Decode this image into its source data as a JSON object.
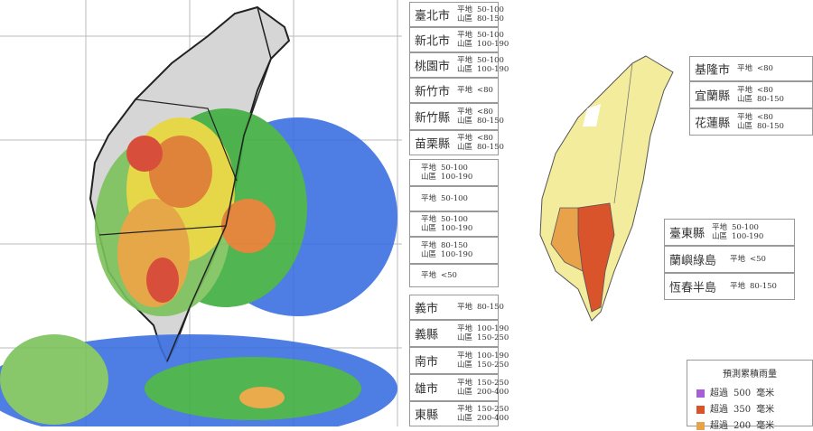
{
  "labels": [
    {
      "name": "臺北市",
      "rows": [
        {
          "zone": "平地",
          "range": "50-100"
        },
        {
          "zone": "山區",
          "range": "80-150"
        }
      ]
    },
    {
      "name": "新北市",
      "rows": [
        {
          "zone": "平地",
          "range": "50-100"
        },
        {
          "zone": "山區",
          "range": "100-190"
        }
      ]
    },
    {
      "name": "桃園市",
      "rows": [
        {
          "zone": "平地",
          "range": "50-100"
        },
        {
          "zone": "山區",
          "range": "100-190"
        }
      ]
    },
    {
      "name": "新竹市",
      "rows": [
        {
          "zone": "平地",
          "range": "<80"
        }
      ]
    },
    {
      "name": "新竹縣",
      "rows": [
        {
          "zone": "平地",
          "range": "<80"
        },
        {
          "zone": "山區",
          "range": "80-150"
        }
      ]
    },
    {
      "name": "苗栗縣",
      "rows": [
        {
          "zone": "平地",
          "range": "<80"
        },
        {
          "zone": "山區",
          "range": "80-150"
        }
      ]
    },
    {
      "rows": [
        {
          "zone": "平地",
          "range": "50-100"
        },
        {
          "zone": "山區",
          "range": "100-190"
        }
      ]
    },
    {
      "rows": [
        {
          "zone": "平地",
          "range": "50-100"
        }
      ]
    },
    {
      "rows": [
        {
          "zone": "平地",
          "range": "50-100"
        },
        {
          "zone": "山區",
          "range": "100-190"
        }
      ]
    },
    {
      "rows": [
        {
          "zone": "平地",
          "range": "80-150"
        },
        {
          "zone": "山區",
          "range": "100-190"
        }
      ]
    },
    {
      "rows": [
        {
          "zone": "平地",
          "range": "<50"
        }
      ]
    },
    {
      "name": "義市",
      "rows": [
        {
          "zone": "平地",
          "range": "80-150"
        }
      ]
    },
    {
      "name": "義縣",
      "rows": [
        {
          "zone": "平地",
          "range": "100-190"
        },
        {
          "zone": "山區",
          "range": "150-250"
        }
      ]
    },
    {
      "name": "南市",
      "rows": [
        {
          "zone": "平地",
          "range": "100-190"
        },
        {
          "zone": "山區",
          "range": "150-250"
        }
      ]
    },
    {
      "name": "雄市",
      "rows": [
        {
          "zone": "平地",
          "range": "150-250"
        },
        {
          "zone": "山區",
          "range": "200-400"
        }
      ]
    },
    {
      "name": "東縣",
      "rows": [
        {
          "zone": "平地",
          "range": "150-250"
        },
        {
          "zone": "山區",
          "range": "200-400"
        }
      ]
    },
    {
      "name": "基隆市",
      "rows": [
        {
          "zone": "平地",
          "range": "<80"
        }
      ]
    },
    {
      "name": "宜蘭縣",
      "rows": [
        {
          "zone": "平地",
          "range": "<80"
        },
        {
          "zone": "山區",
          "range": "80-150"
        }
      ]
    },
    {
      "name": "花蓮縣",
      "rows": [
        {
          "zone": "平地",
          "range": "<80"
        },
        {
          "zone": "山區",
          "range": "80-150"
        }
      ]
    },
    {
      "name": "臺東縣",
      "rows": [
        {
          "zone": "平地",
          "range": "50-100"
        },
        {
          "zone": "山區",
          "range": "100-190"
        }
      ]
    },
    {
      "name": "蘭嶼綠島",
      "rows": [
        {
          "zone": "平地",
          "range": "<50"
        }
      ]
    },
    {
      "name": "恆春半島",
      "rows": [
        {
          "zone": "平地",
          "range": "80-150"
        }
      ]
    }
  ],
  "legend": {
    "title": "預測累積雨量",
    "items": [
      {
        "prefix": "超過",
        "amount": "500",
        "unit": "毫米",
        "color": "#a65fd6"
      },
      {
        "prefix": "超過",
        "amount": "350",
        "unit": "毫米",
        "color": "#d9532b"
      },
      {
        "prefix": "超過",
        "amount": "200",
        "unit": "毫米",
        "color": "#e7a24a"
      }
    ]
  }
}
